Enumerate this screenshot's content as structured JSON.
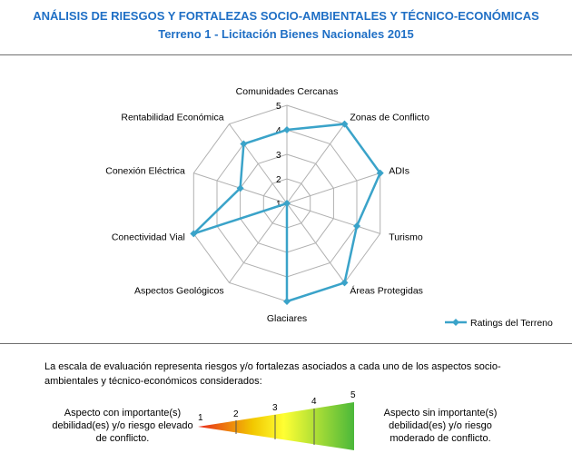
{
  "header": {
    "title": "ANÁLISIS DE RIESGOS Y FORTALEZAS SOCIO-AMBIENTALES Y TÉCNICO-ECONÓMICAS",
    "subtitle": "Terreno 1 - Licitación Bienes Nacionales 2015"
  },
  "chart_data": {
    "type": "radar",
    "categories": [
      "Comunidades Cercanas",
      "Zonas de Conflicto",
      "ADIs",
      "Turismo",
      "Áreas Protegidas",
      "Glaciares",
      "Aspectos Geológicos",
      "Conectividad Vial",
      "Conexión Eléctrica",
      "Rentabilidad Económica"
    ],
    "series": [
      {
        "name": "Ratings del Terreno",
        "values": [
          4,
          5,
          5,
          4,
          5,
          5,
          1,
          5,
          3,
          4
        ],
        "color": "#3aa3c9"
      }
    ],
    "rlim": [
      1,
      5
    ],
    "ticks": [
      "1",
      "2",
      "3",
      "4",
      "5"
    ],
    "grid": true,
    "legend": "bottom-right"
  },
  "scale": {
    "description": "La escala  de evaluación representa riesgos y/o fortalezas asociados a cada uno de los aspectos socio-ambientales y técnico-económicos considerados:",
    "left_note": "Aspecto con importante(s) debilidad(es) y/o riesgo elevado de conflicto.",
    "right_note": "Aspecto sin importante(s) debilidad(es) y/o riesgo moderado de conflicto.",
    "numbers": [
      "1",
      "2",
      "3",
      "4",
      "5"
    ],
    "colors": [
      "#e8281e",
      "#f2c700",
      "#ffff33",
      "#4bb83a"
    ]
  }
}
